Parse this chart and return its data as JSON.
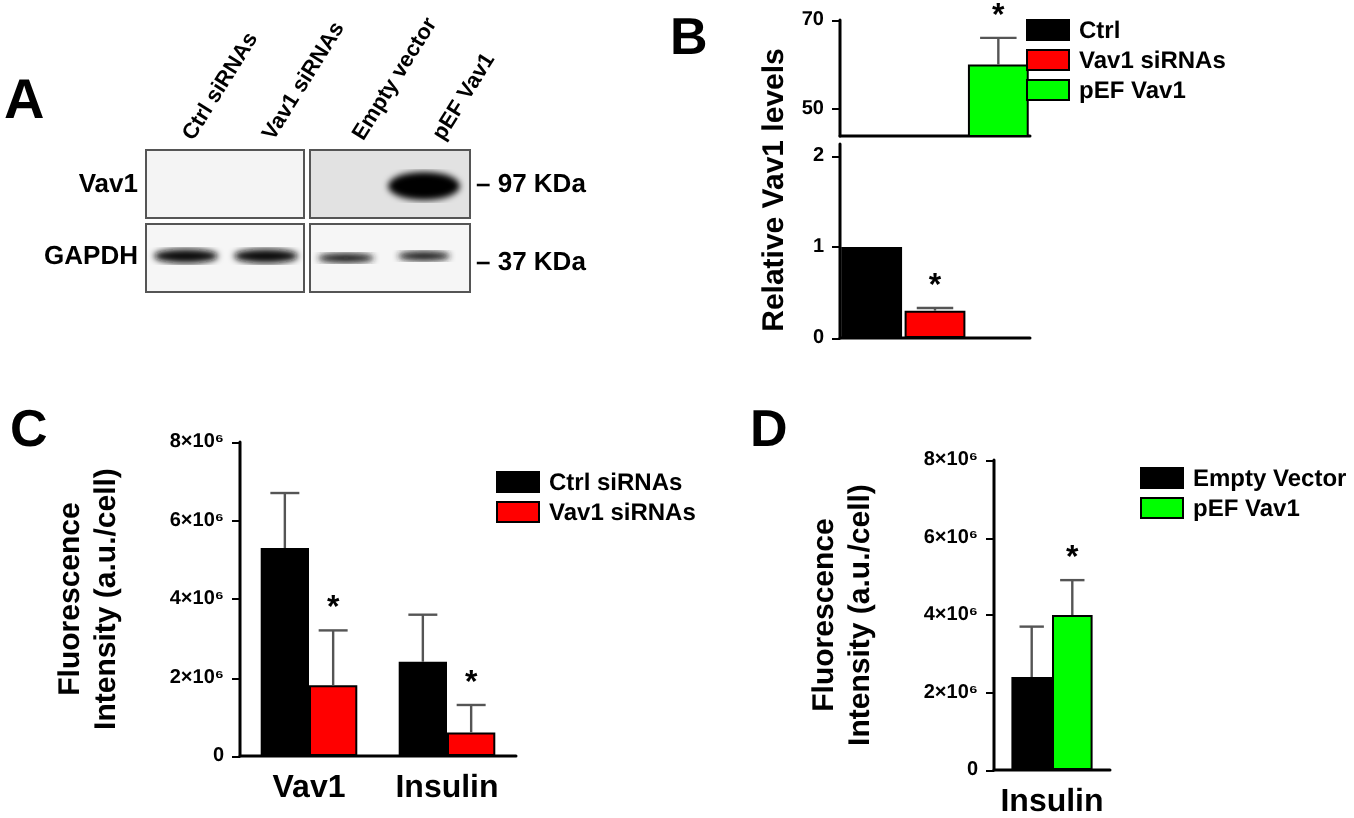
{
  "chart_data": [
    {
      "type": "other",
      "title": "A",
      "annotations": [
        "Ctrl siRNAs",
        "Vav1 siRNAs",
        "Empty vector",
        "pEF Vav1",
        "Vav1",
        "GAPDH",
        "– 97 KDa",
        "– 37 KDa"
      ]
    },
    {
      "type": "bar",
      "title": "B",
      "categories": [
        null,
        null,
        null
      ],
      "ylim": [
        44,
        70
      ],
      "yticks": [
        50,
        70
      ],
      "series": [
        {
          "color": "#00ff00",
          "values": [
            null,
            null,
            60
          ],
          "errors": [
            null,
            null,
            [
              60,
              66
            ]
          ],
          "value_labels": [
            null,
            null,
            "*"
          ]
        }
      ]
    },
    {
      "type": "bar",
      "ylabel": "Relative Vav1 levels",
      "categories": [
        null,
        null,
        null
      ],
      "ylim": [
        0,
        2.13
      ],
      "yticks": [
        0,
        1,
        2
      ],
      "legend": "top right",
      "series": [
        {
          "name": "Ctrl",
          "color": "#000000",
          "values": [
            1,
            null,
            null
          ]
        },
        {
          "name": "Vav1 siRNAs",
          "color": "#ff0000",
          "values": [
            null,
            0.3,
            null
          ],
          "errors": [
            null,
            [
              0.3,
              0.33
            ],
            null
          ],
          "value_labels": [
            null,
            "*",
            null
          ]
        },
        {
          "name": "pEF Vav1",
          "color": "#00ff00",
          "values": [
            null,
            null,
            null
          ]
        }
      ]
    },
    {
      "type": "bar",
      "title": "C",
      "ylabel": "Fluorescence\nIntensity (a.u./cell)",
      "categories": [
        "Vav1",
        "Insulin"
      ],
      "ylim": [
        0,
        8000000
      ],
      "yticks": [
        0,
        {
          "value": 2000000,
          "label": "2×10⁶"
        },
        {
          "value": 4000000,
          "label": "4×10⁶"
        },
        {
          "value": 6000000,
          "label": "6×10⁶"
        },
        {
          "value": 8000000,
          "label": "8×10⁶"
        }
      ],
      "legend": "top right",
      "series": [
        {
          "name": "Ctrl siRNAs",
          "color": "#000000",
          "values": [
            5300000,
            2400000
          ],
          "errors": [
            [
              5300000,
              6700000
            ],
            [
              2400000,
              3600000
            ]
          ]
        },
        {
          "name": "Vav1 siRNAs",
          "color": "#ff0000",
          "values": [
            1800000,
            600000
          ],
          "errors": [
            [
              1800000,
              3200000
            ],
            [
              600000,
              1300000
            ]
          ],
          "value_labels": [
            "*",
            "*"
          ]
        }
      ]
    },
    {
      "type": "bar",
      "title": "D",
      "ylabel": "Fluorescence\nIntensity (a.u./cell)",
      "categories": [
        "Insulin"
      ],
      "ylim": [
        0,
        8000000
      ],
      "yticks": [
        0,
        {
          "value": 2000000,
          "label": "2×10⁶"
        },
        {
          "value": 4000000,
          "label": "4×10⁶"
        },
        {
          "value": 6000000,
          "label": "6×10⁶"
        },
        {
          "value": 8000000,
          "label": "8×10⁶"
        }
      ],
      "legend": "top right",
      "series": [
        {
          "name": "Empty Vector",
          "color": "#000000",
          "values": [
            2400000
          ],
          "errors": [
            [
              2400000,
              3700000
            ]
          ]
        },
        {
          "name": "pEF Vav1",
          "color": "#00ff00",
          "values": [
            4000000
          ],
          "errors": [
            [
              4000000,
              4900000
            ]
          ],
          "value_labels": [
            "*"
          ]
        }
      ]
    }
  ]
}
